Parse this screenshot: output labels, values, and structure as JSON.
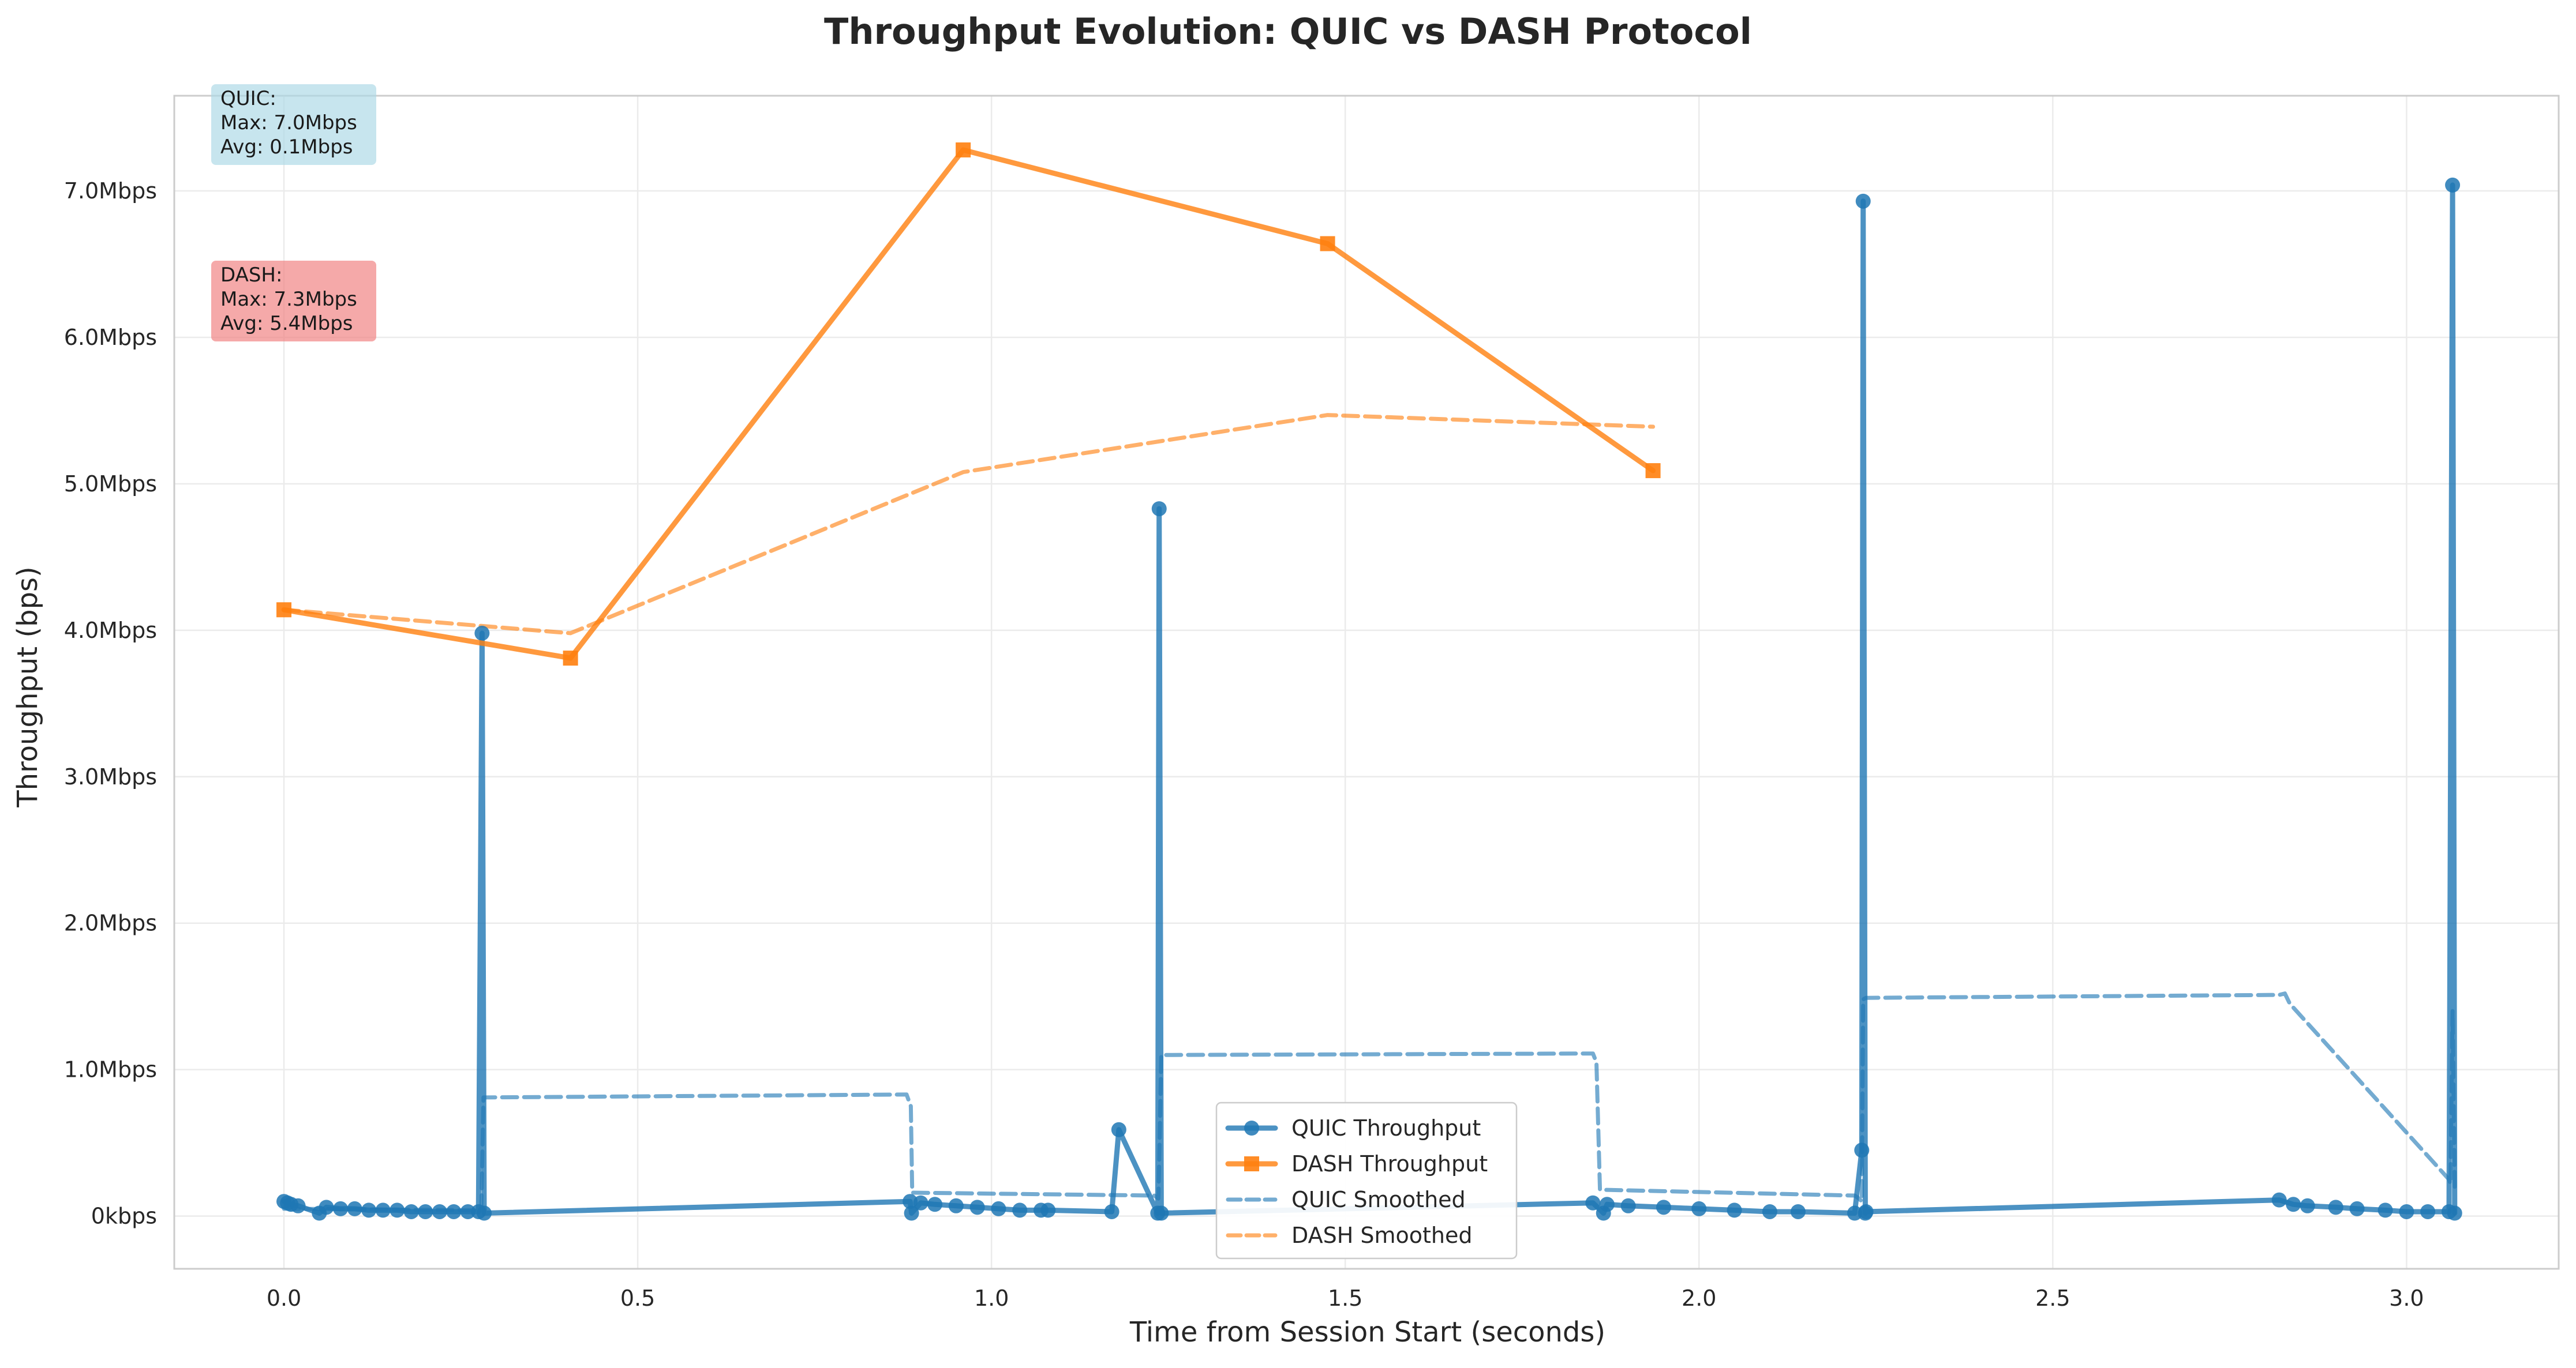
{
  "chart_data": {
    "type": "line",
    "title": "Throughput Evolution: QUIC vs DASH Protocol",
    "xlabel": "Time from Session Start (seconds)",
    "ylabel": "Throughput (bps)",
    "xlim": [
      -0.155,
      3.215
    ],
    "ylim": [
      -0.36,
      7.65
    ],
    "y_unit": "Mbps",
    "xticks": [
      0.0,
      0.5,
      1.0,
      1.5,
      2.0,
      2.5,
      3.0
    ],
    "xtick_labels": [
      "0.0",
      "0.5",
      "1.0",
      "1.5",
      "2.0",
      "2.5",
      "3.0"
    ],
    "yticks": [
      0,
      1,
      2,
      3,
      4,
      5,
      6,
      7
    ],
    "ytick_labels": [
      "0kbps",
      "1.0Mbps",
      "2.0Mbps",
      "3.0Mbps",
      "4.0Mbps",
      "5.0Mbps",
      "6.0Mbps",
      "7.0Mbps"
    ],
    "grid": true,
    "legend_position": "bottom-center",
    "series": [
      {
        "name": "QUIC Throughput",
        "color": "#1f77b4",
        "style": "solid",
        "marker": "circle",
        "x": [
          0.0,
          0.005,
          0.01,
          0.02,
          0.05,
          0.06,
          0.08,
          0.1,
          0.12,
          0.14,
          0.16,
          0.18,
          0.2,
          0.22,
          0.24,
          0.26,
          0.275,
          0.28,
          0.283,
          0.885,
          0.887,
          0.9,
          0.92,
          0.95,
          0.98,
          1.01,
          1.04,
          1.07,
          1.08,
          1.17,
          1.18,
          1.235,
          1.237,
          1.24,
          1.85,
          1.865,
          1.87,
          1.9,
          1.95,
          2.0,
          2.05,
          2.1,
          2.14,
          2.22,
          2.23,
          2.232,
          2.235,
          2.236,
          2.82,
          2.84,
          2.86,
          2.9,
          2.93,
          2.97,
          3.0,
          3.03,
          3.06,
          3.065,
          3.068
        ],
        "y": [
          0.1,
          0.09,
          0.08,
          0.07,
          0.02,
          0.06,
          0.05,
          0.05,
          0.04,
          0.04,
          0.04,
          0.03,
          0.03,
          0.03,
          0.03,
          0.03,
          0.03,
          3.98,
          0.02,
          0.1,
          0.02,
          0.09,
          0.08,
          0.07,
          0.06,
          0.05,
          0.04,
          0.04,
          0.04,
          0.03,
          0.59,
          0.02,
          4.83,
          0.02,
          0.09,
          0.02,
          0.08,
          0.07,
          0.06,
          0.05,
          0.04,
          0.03,
          0.03,
          0.02,
          0.45,
          6.93,
          0.02,
          0.03,
          0.11,
          0.08,
          0.07,
          0.06,
          0.05,
          0.04,
          0.03,
          0.03,
          0.03,
          7.04,
          0.02
        ]
      },
      {
        "name": "DASH Throughput",
        "color": "#ff7f0e",
        "style": "solid",
        "marker": "square",
        "x": [
          0.0,
          0.405,
          0.96,
          1.475,
          1.935
        ],
        "y": [
          4.14,
          3.81,
          7.28,
          6.64,
          5.09
        ]
      },
      {
        "name": "QUIC Smoothed",
        "color": "#1f77b4",
        "style": "dashed",
        "x": [
          0.0,
          0.276,
          0.279,
          0.282,
          0.88,
          0.886,
          0.888,
          1.23,
          1.236,
          1.24,
          1.85,
          1.855,
          1.86,
          2.22,
          2.226,
          2.23,
          2.232,
          2.236,
          2.82,
          2.828,
          2.835,
          3.06,
          3.062,
          3.065,
          3.068
        ],
        "y": [
          0.05,
          0.04,
          0.04,
          0.81,
          0.83,
          0.75,
          0.16,
          0.14,
          0.12,
          1.1,
          1.11,
          1.05,
          0.18,
          0.14,
          0.12,
          0.1,
          1.48,
          1.49,
          1.51,
          1.52,
          1.45,
          0.25,
          0.22,
          1.4,
          0.2
        ]
      },
      {
        "name": "DASH Smoothed",
        "color": "#ff7f0e",
        "style": "dashed",
        "x": [
          0.0,
          0.405,
          0.96,
          1.475,
          1.935
        ],
        "y": [
          4.14,
          3.98,
          5.08,
          5.47,
          5.39
        ]
      }
    ],
    "annotations": [
      {
        "lines": [
          "QUIC:",
          "Max: 7.0Mbps",
          "Avg: 0.1Mbps"
        ],
        "background": "#add8e6"
      },
      {
        "lines": [
          "DASH:",
          "Max: 7.3Mbps",
          "Avg: 5.4Mbps"
        ],
        "background": "#f08080"
      }
    ]
  }
}
